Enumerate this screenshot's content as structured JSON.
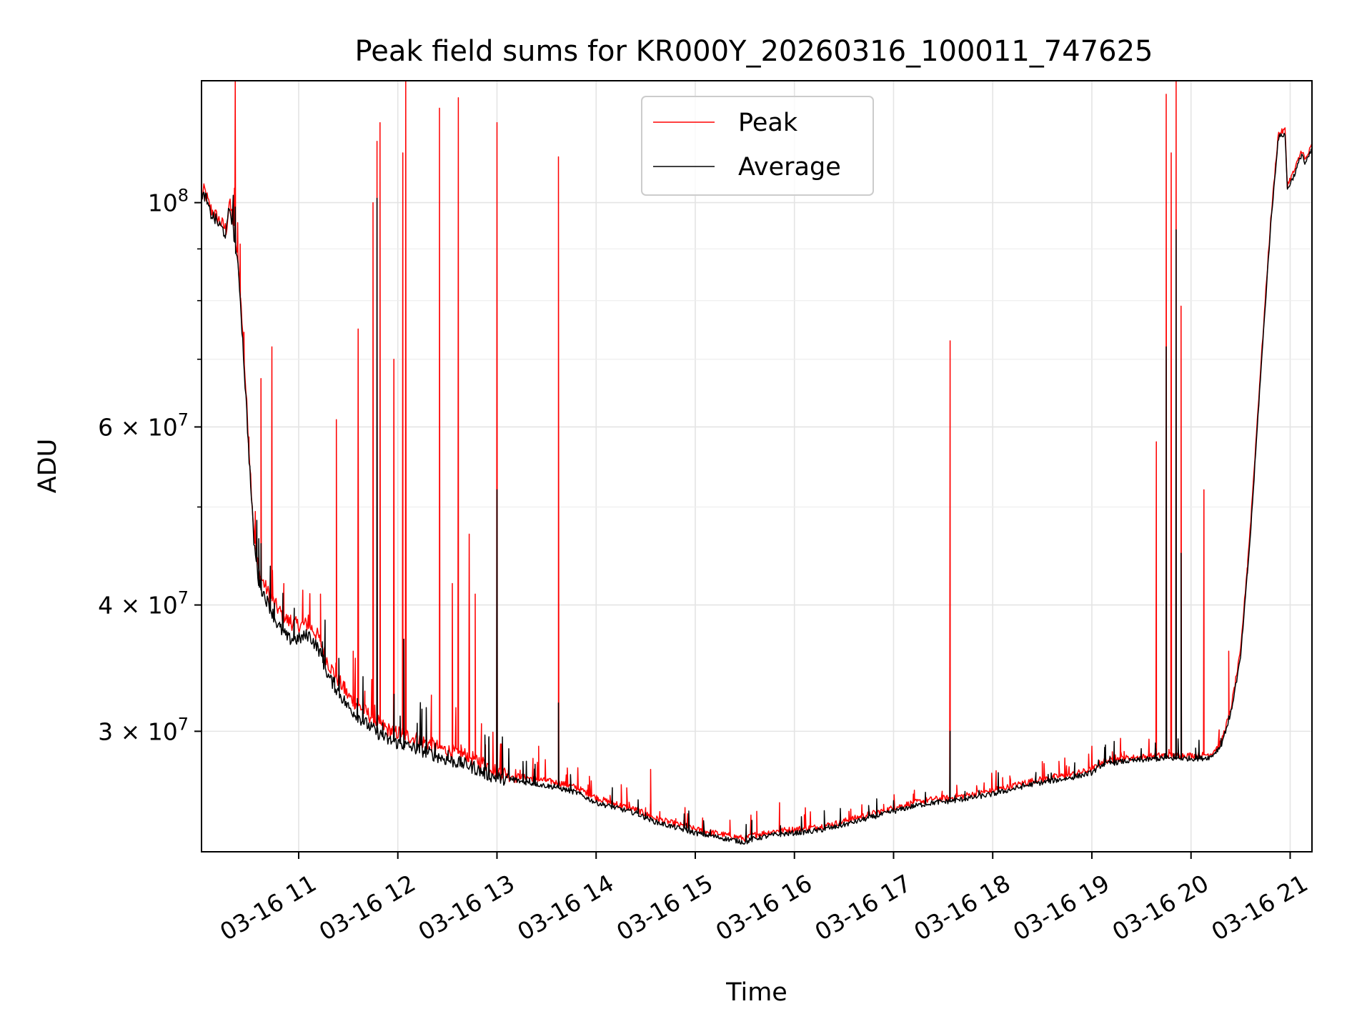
{
  "chart_data": {
    "type": "line",
    "title": "Peak field sums for KR000Y_20260316_100011_747625",
    "xlabel": "Time",
    "ylabel": "ADU",
    "y_scale": "log",
    "grid": true,
    "legend_position": "top-center",
    "x_range_hours": [
      10.02,
      21.22
    ],
    "y_range": [
      22800000,
      132000000
    ],
    "x_ticks": [
      {
        "hour": 11,
        "label": "03-16 11"
      },
      {
        "hour": 12,
        "label": "03-16 12"
      },
      {
        "hour": 13,
        "label": "03-16 13"
      },
      {
        "hour": 14,
        "label": "03-16 14"
      },
      {
        "hour": 15,
        "label": "03-16 15"
      },
      {
        "hour": 16,
        "label": "03-16 16"
      },
      {
        "hour": 17,
        "label": "03-16 17"
      },
      {
        "hour": 18,
        "label": "03-16 18"
      },
      {
        "hour": 19,
        "label": "03-16 19"
      },
      {
        "hour": 20,
        "label": "03-16 20"
      },
      {
        "hour": 21,
        "label": "03-16 21"
      }
    ],
    "y_ticks": [
      {
        "value": 30000000,
        "base": "3",
        "exp": "7"
      },
      {
        "value": 40000000,
        "base": "4",
        "exp": "7"
      },
      {
        "value": 60000000,
        "base": "6",
        "exp": "7"
      },
      {
        "value": 100000000,
        "base": "10",
        "exp": "8"
      }
    ],
    "times_multiply_sign": "×",
    "y_minor_ticks": [
      50000000,
      70000000,
      80000000,
      90000000
    ],
    "series": [
      {
        "name": "Peak",
        "color": "#ff0000",
        "base_points": [
          [
            10.02,
            101000000
          ],
          [
            10.05,
            103000000
          ],
          [
            10.1,
            99000000
          ],
          [
            10.2,
            96000000
          ],
          [
            10.27,
            94000000
          ],
          [
            10.3,
            100000000
          ],
          [
            10.33,
            97000000
          ],
          [
            10.4,
            85000000
          ],
          [
            10.45,
            70000000
          ],
          [
            10.5,
            57000000
          ],
          [
            10.55,
            47000000
          ],
          [
            10.6,
            43000000
          ],
          [
            10.7,
            41000000
          ],
          [
            10.8,
            39500000
          ],
          [
            10.9,
            38500000
          ],
          [
            11.0,
            38200000
          ],
          [
            11.1,
            38300000
          ],
          [
            11.2,
            37200000
          ],
          [
            11.3,
            35000000
          ],
          [
            11.5,
            32500000
          ],
          [
            11.7,
            31200000
          ],
          [
            11.9,
            30100000
          ],
          [
            12.1,
            29700000
          ],
          [
            12.3,
            29200000
          ],
          [
            12.5,
            28700000
          ],
          [
            12.7,
            28400000
          ],
          [
            12.9,
            27800000
          ],
          [
            13.0,
            27400000
          ],
          [
            13.2,
            27100000
          ],
          [
            13.4,
            26900000
          ],
          [
            13.6,
            26700000
          ],
          [
            13.8,
            26400000
          ],
          [
            14.0,
            25800000
          ],
          [
            14.2,
            25400000
          ],
          [
            14.4,
            25100000
          ],
          [
            14.6,
            24600000
          ],
          [
            14.8,
            24300000
          ],
          [
            15.0,
            24000000
          ],
          [
            15.2,
            23800000
          ],
          [
            15.4,
            23600000
          ],
          [
            15.5,
            23500000
          ],
          [
            15.6,
            23700000
          ],
          [
            15.8,
            23900000
          ],
          [
            16.0,
            24000000
          ],
          [
            16.2,
            24100000
          ],
          [
            16.4,
            24300000
          ],
          [
            16.6,
            24600000
          ],
          [
            16.8,
            24900000
          ],
          [
            17.0,
            25200000
          ],
          [
            17.2,
            25500000
          ],
          [
            17.4,
            25700000
          ],
          [
            17.6,
            25800000
          ],
          [
            17.8,
            26000000
          ],
          [
            18.0,
            26200000
          ],
          [
            18.2,
            26500000
          ],
          [
            18.4,
            26800000
          ],
          [
            18.6,
            27000000
          ],
          [
            18.8,
            27200000
          ],
          [
            19.0,
            27500000
          ],
          [
            19.1,
            28000000
          ],
          [
            19.3,
            28200000
          ],
          [
            19.5,
            28300000
          ],
          [
            19.7,
            28400000
          ],
          [
            19.9,
            28400000
          ],
          [
            20.0,
            28400000
          ],
          [
            20.1,
            28400000
          ],
          [
            20.2,
            28500000
          ],
          [
            20.3,
            29200000
          ],
          [
            20.4,
            31500000
          ],
          [
            20.5,
            36000000
          ],
          [
            20.6,
            48000000
          ],
          [
            20.7,
            68000000
          ],
          [
            20.8,
            95000000
          ],
          [
            20.88,
            117000000
          ],
          [
            20.95,
            118000000
          ],
          [
            20.97,
            104000000
          ],
          [
            21.05,
            108000000
          ],
          [
            21.12,
            113000000
          ],
          [
            21.15,
            110000000
          ],
          [
            21.22,
            114000000
          ]
        ],
        "spikes": [
          [
            10.36,
            132000000
          ],
          [
            10.41,
            91000000
          ],
          [
            10.62,
            67000000
          ],
          [
            10.73,
            72000000
          ],
          [
            10.85,
            42000000
          ],
          [
            11.22,
            41000000
          ],
          [
            11.38,
            61000000
          ],
          [
            11.55,
            36000000
          ],
          [
            11.6,
            75000000
          ],
          [
            11.75,
            100000000
          ],
          [
            11.79,
            115000000
          ],
          [
            11.82,
            120000000
          ],
          [
            11.96,
            70000000
          ],
          [
            12.05,
            112000000
          ],
          [
            12.08,
            132000000
          ],
          [
            12.42,
            124000000
          ],
          [
            12.55,
            42000000
          ],
          [
            12.61,
            127000000
          ],
          [
            12.72,
            47000000
          ],
          [
            12.78,
            41000000
          ],
          [
            13.0,
            120000000
          ],
          [
            13.42,
            29000000
          ],
          [
            13.62,
            111000000
          ],
          [
            14.55,
            27500000
          ],
          [
            15.35,
            24500000
          ],
          [
            15.62,
            25000000
          ],
          [
            15.85,
            25500000
          ],
          [
            16.1,
            24800000
          ],
          [
            16.55,
            25000000
          ],
          [
            16.9,
            25400000
          ],
          [
            17.2,
            26000000
          ],
          [
            17.57,
            73000000
          ],
          [
            18.1,
            27000000
          ],
          [
            18.5,
            28000000
          ],
          [
            19.0,
            29000000
          ],
          [
            19.65,
            58000000
          ],
          [
            19.75,
            128000000
          ],
          [
            19.8,
            112000000
          ],
          [
            19.85,
            132000000
          ],
          [
            19.9,
            79000000
          ],
          [
            20.13,
            52000000
          ],
          [
            20.38,
            36000000
          ],
          [
            20.57,
            43000000
          ]
        ]
      },
      {
        "name": "Average",
        "color": "#000000",
        "base_points": [
          [
            10.02,
            100000000
          ],
          [
            10.05,
            102000000
          ],
          [
            10.1,
            98000000
          ],
          [
            10.2,
            95000000
          ],
          [
            10.27,
            93000000
          ],
          [
            10.3,
            99000000
          ],
          [
            10.33,
            96000000
          ],
          [
            10.4,
            84000000
          ],
          [
            10.45,
            69000000
          ],
          [
            10.5,
            56000000
          ],
          [
            10.55,
            46000000
          ],
          [
            10.6,
            42000000
          ],
          [
            10.7,
            40000000
          ],
          [
            10.8,
            38000000
          ],
          [
            10.9,
            37000000
          ],
          [
            11.0,
            37000000
          ],
          [
            11.1,
            37400000
          ],
          [
            11.2,
            36200000
          ],
          [
            11.3,
            34000000
          ],
          [
            11.5,
            31700000
          ],
          [
            11.7,
            30400000
          ],
          [
            11.9,
            29400000
          ],
          [
            12.1,
            29000000
          ],
          [
            12.3,
            28600000
          ],
          [
            12.5,
            28100000
          ],
          [
            12.7,
            27800000
          ],
          [
            12.9,
            27200000
          ],
          [
            13.0,
            27000000
          ],
          [
            13.2,
            26800000
          ],
          [
            13.4,
            26600000
          ],
          [
            13.6,
            26400000
          ],
          [
            13.8,
            26100000
          ],
          [
            14.0,
            25500000
          ],
          [
            14.2,
            25200000
          ],
          [
            14.4,
            24900000
          ],
          [
            14.6,
            24400000
          ],
          [
            14.8,
            24100000
          ],
          [
            15.0,
            23800000
          ],
          [
            15.2,
            23600000
          ],
          [
            15.4,
            23400000
          ],
          [
            15.5,
            23300000
          ],
          [
            15.6,
            23500000
          ],
          [
            15.8,
            23700000
          ],
          [
            16.0,
            23800000
          ],
          [
            16.2,
            23900000
          ],
          [
            16.4,
            24100000
          ],
          [
            16.6,
            24400000
          ],
          [
            16.8,
            24700000
          ],
          [
            17.0,
            25000000
          ],
          [
            17.2,
            25300000
          ],
          [
            17.4,
            25500000
          ],
          [
            17.6,
            25600000
          ],
          [
            17.8,
            25800000
          ],
          [
            18.0,
            26000000
          ],
          [
            18.2,
            26300000
          ],
          [
            18.4,
            26600000
          ],
          [
            18.6,
            26800000
          ],
          [
            18.8,
            27000000
          ],
          [
            19.0,
            27300000
          ],
          [
            19.1,
            27800000
          ],
          [
            19.3,
            28000000
          ],
          [
            19.5,
            28100000
          ],
          [
            19.7,
            28200000
          ],
          [
            19.9,
            28200000
          ],
          [
            20.0,
            28200000
          ],
          [
            20.1,
            28200000
          ],
          [
            20.2,
            28300000
          ],
          [
            20.3,
            29000000
          ],
          [
            20.4,
            31200000
          ],
          [
            20.5,
            35500000
          ],
          [
            20.6,
            47000000
          ],
          [
            20.7,
            67000000
          ],
          [
            20.8,
            94000000
          ],
          [
            20.88,
            116000000
          ],
          [
            20.95,
            117000000
          ],
          [
            20.97,
            103000000
          ],
          [
            21.05,
            107000000
          ],
          [
            21.12,
            112000000
          ],
          [
            21.15,
            109000000
          ],
          [
            21.22,
            113000000
          ]
        ],
        "spikes": [
          [
            10.36,
            99000000
          ],
          [
            10.62,
            46000000
          ],
          [
            11.79,
            101000000
          ],
          [
            12.06,
            37000000
          ],
          [
            13.0,
            52000000
          ],
          [
            13.62,
            32000000
          ],
          [
            17.57,
            30000000
          ],
          [
            19.75,
            72000000
          ],
          [
            19.85,
            94000000
          ],
          [
            19.9,
            45000000
          ]
        ]
      }
    ]
  }
}
